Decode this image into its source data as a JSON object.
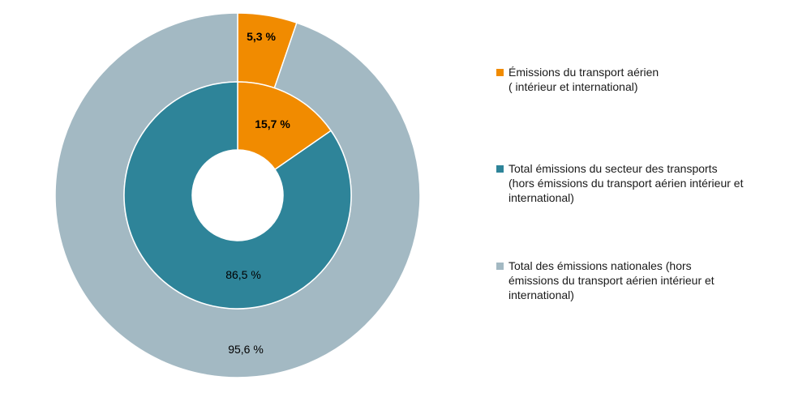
{
  "chart_data": {
    "type": "pie",
    "subtype": "doughnut-nested",
    "rings": [
      {
        "name": "outer",
        "slices": [
          {
            "label_key": 0,
            "value": 5.3,
            "data_label": "5,3 %"
          },
          {
            "label_key": 2,
            "value": 95.6,
            "data_label": "95,6 %"
          }
        ]
      },
      {
        "name": "inner",
        "slices": [
          {
            "label_key": 0,
            "value": 15.7,
            "data_label": "15,7 %"
          },
          {
            "label_key": 1,
            "value": 86.5,
            "data_label": "86,5 %"
          }
        ]
      }
    ],
    "legend": [
      {
        "color": "#f18b00",
        "lines": [
          "Émissions du transport aérien",
          "( intérieur et international)"
        ]
      },
      {
        "color": "#2e8499",
        "lines": [
          "Total émissions du secteur des transports",
          "(hors émissions du transport aérien intérieur et",
          "international)"
        ]
      },
      {
        "color": "#a3b9c3",
        "lines": [
          "Total des émissions nationales (hors",
          "émissions du transport aérien intérieur et",
          "international)"
        ]
      }
    ]
  }
}
